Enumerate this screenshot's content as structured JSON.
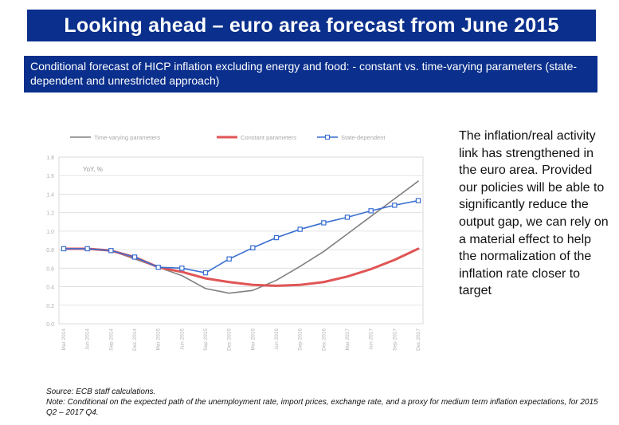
{
  "title": "Looking ahead – euro area forecast from June 2015",
  "subtitle": "Conditional forecast of HICP inflation excluding energy and food: - constant vs. time-varying parameters (state-dependent and unrestricted approach)",
  "side_text": "The inflation/real activity link has strengthened in the euro area. Provided our policies will be able to significantly reduce the output gap, we can rely on a material effect to help the normalization of the inflation rate closer to target",
  "footer": {
    "source": "Source: ECB staff calculations.",
    "note": "Note: Conditional on the expected path of the unemployment rate, import prices, exchange rate, and a proxy for medium term inflation expectations, for 2015 Q2 – 2017 Q4."
  },
  "chart_data": {
    "type": "line",
    "ylabel": "YoY, %",
    "ylim": [
      0,
      1.8
    ],
    "yticks": [
      "0.0",
      "0.2",
      "0.4",
      "0.6",
      "0.8",
      "1.0",
      "1.2",
      "1.4",
      "1.6",
      "1.8"
    ],
    "categories": [
      "Mar 2014",
      "Jun 2014",
      "Sep 2014",
      "Dec 2014",
      "Mar 2015",
      "Jun 2015",
      "Sep 2015",
      "Dec 2015",
      "Mar 2016",
      "Jun 2016",
      "Sep 2016",
      "Dec 2016",
      "Mar 2017",
      "Jun 2017",
      "Sep 2017",
      "Dec 2017"
    ],
    "legend_position": "top",
    "series": [
      {
        "name": "Time-varying parameters",
        "color": "#808080",
        "width": 1.6,
        "marker": false,
        "values": [
          0.81,
          0.81,
          0.79,
          0.7,
          0.61,
          0.52,
          0.38,
          0.33,
          0.36,
          0.47,
          0.62,
          0.78,
          0.97,
          1.16,
          1.35,
          1.54
        ]
      },
      {
        "name": "Constant parameters",
        "color": "#e05555",
        "width": 3,
        "marker": false,
        "values": [
          0.81,
          0.81,
          0.79,
          0.72,
          0.61,
          0.56,
          0.49,
          0.45,
          0.42,
          0.41,
          0.42,
          0.45,
          0.51,
          0.59,
          0.69,
          0.81
        ]
      },
      {
        "name": "State-dependent",
        "color": "#3a6fd1",
        "width": 1.6,
        "marker": true,
        "values": [
          0.81,
          0.81,
          0.79,
          0.72,
          0.61,
          0.6,
          0.55,
          0.7,
          0.82,
          0.93,
          1.02,
          1.09,
          1.15,
          1.22,
          1.28,
          1.33
        ]
      }
    ]
  }
}
